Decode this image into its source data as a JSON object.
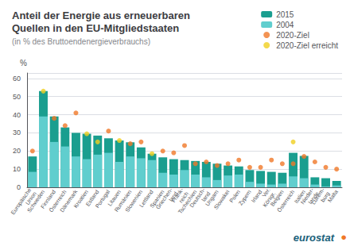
{
  "chart_data": {
    "type": "bar",
    "title": "Anteil der Energie aus erneuerbaren\nQuellen in den EU-Mitgliedstaaten",
    "subtitle": "(in % des Bruttoendenergieverbrauchs)",
    "ylabel": "%",
    "annotations": [
      "eurostat",
      "●"
    ],
    "categories": [
      "Europäische\nUnion",
      "Schweden",
      "Finnland",
      "Österreich",
      "Dänemark",
      "Kroatien",
      "Estland",
      "Portugal",
      "Litauen",
      "Rumänien",
      "Slowenien",
      "Lettland",
      "Spanien",
      "Griechen-\nland",
      "Frank-\nreich",
      "Tschechien",
      "Deutsch-\nland",
      "Ungarn",
      "Slowakei",
      "Polen",
      "Zypern",
      "Irland",
      "Ver.\nKönigr.",
      "Belgien",
      "Österreich",
      "Italien",
      "Nieder-\nlande",
      "Luxem-\nburg",
      "Malta"
    ],
    "series": [
      {
        "name": "2015",
        "type": "bar",
        "color": "#1a9e8f",
        "values": [
          17.0,
          53.0,
          39.0,
          33.0,
          30.0,
          29.5,
          28.5,
          27.0,
          25.8,
          24.8,
          22.0,
          18.5,
          16.5,
          15.5,
          15.0,
          14.5,
          14.0,
          13.0,
          12.0,
          11.5,
          9.5,
          9.0,
          8.5,
          8.0,
          19.0,
          17.3,
          5.5,
          5.0,
          3.5
        ]
      },
      {
        "name": "2004",
        "type": "bar",
        "color": "#60cece",
        "values": [
          8.5,
          39.0,
          25.0,
          22.5,
          17.0,
          15.5,
          18.0,
          19.0,
          14.0,
          17.0,
          16.0,
          15.0,
          8.0,
          7.0,
          9.5,
          7.0,
          5.5,
          4.0,
          6.5,
          7.0,
          3.0,
          2.0,
          1.5,
          2.0,
          6.0,
          5.0,
          1.5,
          0.5,
          1.0
        ]
      },
      {
        "name": "2020-Ziel",
        "type": "scatter",
        "marker": "circle",
        "color": "#f07828",
        "values": [
          20.0,
          null,
          38.0,
          34.0,
          41.0,
          null,
          null,
          31.0,
          null,
          24.0,
          25.0,
          null,
          20.0,
          19.0,
          23.0,
          13.0,
          14.0,
          12.0,
          13.0,
          15.0,
          11.0,
          11.0,
          15.0,
          13.0,
          13.0,
          17.0,
          14.0,
          11.0,
          10.0
        ]
      },
      {
        "name": "2020-Ziel erreicht",
        "type": "scatter",
        "marker": "circle",
        "color": "#f0d020",
        "values": [
          null,
          53.0,
          null,
          null,
          null,
          29.5,
          25.0,
          null,
          25.8,
          null,
          null,
          18.5,
          null,
          null,
          null,
          null,
          null,
          null,
          null,
          null,
          null,
          null,
          null,
          null,
          25.0,
          null,
          null,
          null,
          null
        ]
      }
    ],
    "ylim": [
      0,
      63
    ],
    "yticks": [
      0,
      10,
      20,
      30,
      40,
      50,
      60
    ],
    "grid": true,
    "legend": "upper right"
  }
}
